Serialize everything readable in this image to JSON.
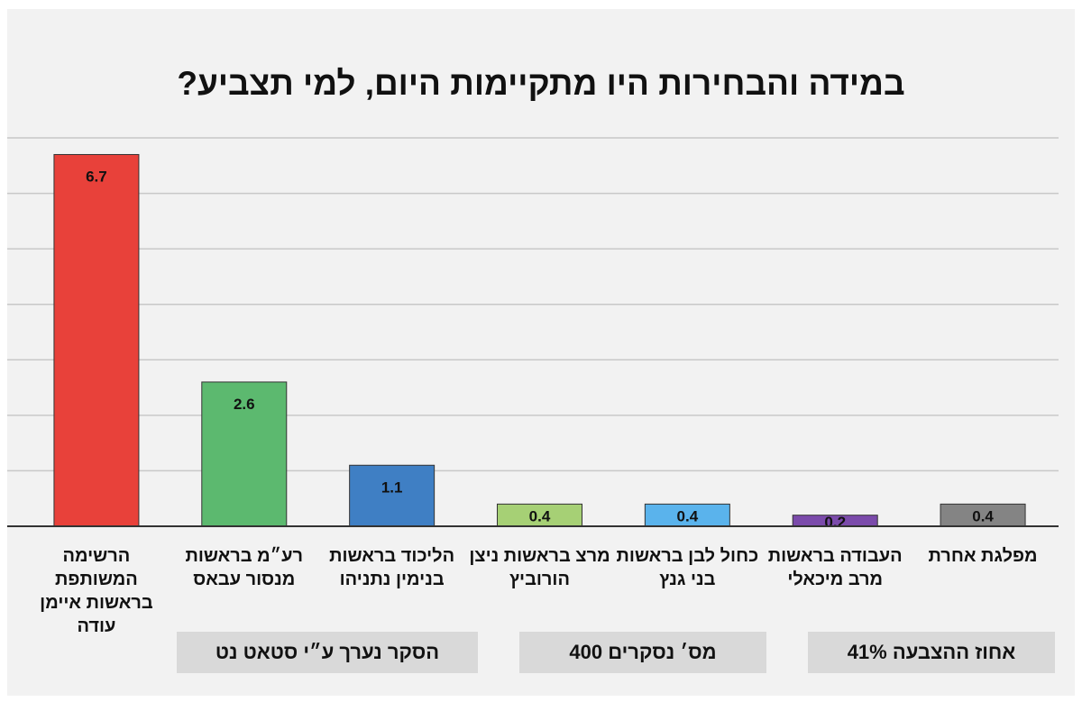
{
  "chart_data": {
    "type": "bar",
    "title": "במידה והבחירות היו מתקיימות היום, למי תצביע?",
    "categories": [
      "הרשימה המשותפת בראשות איימן עודה",
      "רע״מ בראשות מנסור עבאס",
      "הליכוד בראשות בנימין נתניהו",
      "מרצ בראשות ניצן הורוביץ",
      "כחול לבן בראשות בני גנץ",
      "העבודה בראשות מרב מיכאלי",
      "מפלגת אחרת"
    ],
    "values": [
      6.7,
      2.6,
      1.1,
      0.4,
      0.4,
      0.2,
      0.4
    ],
    "value_labels": [
      "6.7",
      "2.6",
      "1.1",
      "0.4",
      "0.4",
      "0.2",
      "0.4"
    ],
    "colors": [
      "#e8413a",
      "#5cb96f",
      "#3f7fc4",
      "#a6d075",
      "#5ab3ec",
      "#7b4bab",
      "#848484"
    ],
    "ylim": [
      0,
      7
    ],
    "grid": true,
    "legend": "none",
    "xlabel": "",
    "ylabel": ""
  },
  "info": {
    "survey": "הסקר נערך ע״י סטאט נט",
    "respondents": "מס׳ נסקרים 400",
    "turnout": "אחוז ההצבעה 41%"
  }
}
